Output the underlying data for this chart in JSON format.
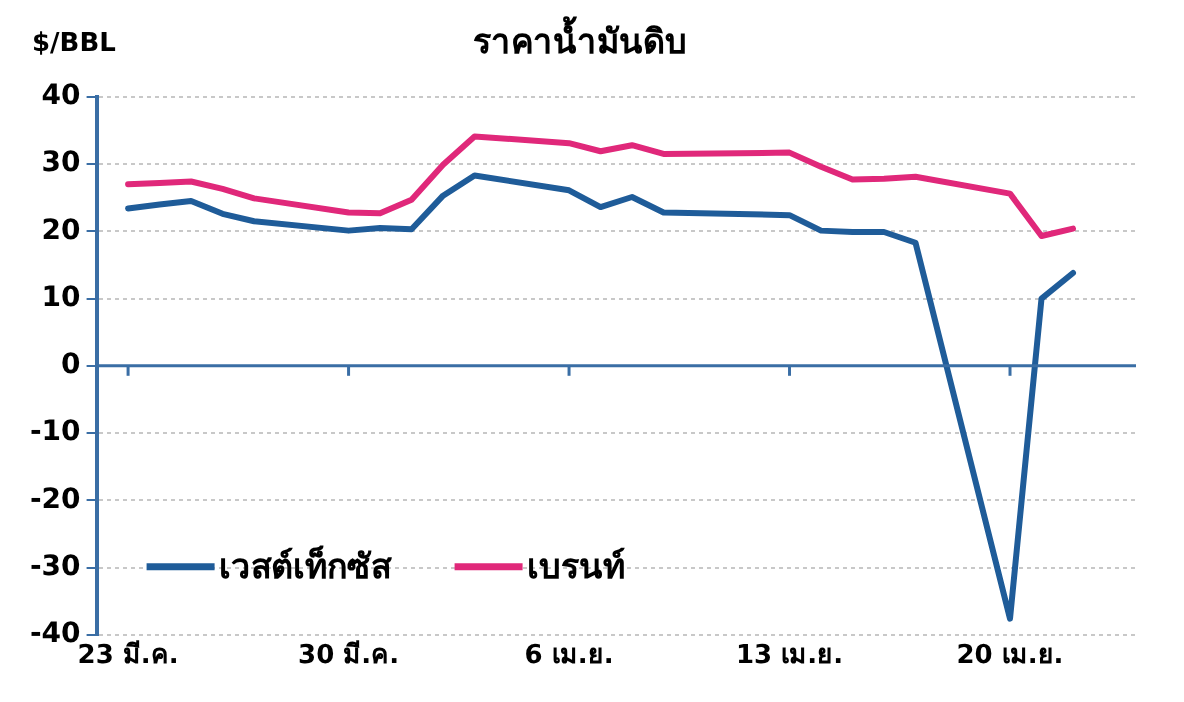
{
  "chart_data": {
    "type": "line",
    "title": "ราคาน้ำมันดิบ",
    "ylabel": "$/BBL",
    "x": [
      "--03-23",
      "--03-24",
      "--03-25",
      "--03-26",
      "--03-27",
      "--03-30",
      "--03-31",
      "--04-01",
      "--04-02",
      "--04-03",
      "--04-06",
      "--04-07",
      "--04-08",
      "--04-09",
      "--04-13",
      "--04-14",
      "--04-15",
      "--04-16",
      "--04-17",
      "--04-20",
      "--04-21",
      "--04-22"
    ],
    "series": [
      {
        "name": "เวสต์เท็กซัส",
        "color": "#1f5c99",
        "values": [
          23.4,
          24.0,
          24.5,
          22.6,
          21.5,
          20.1,
          20.5,
          20.3,
          25.3,
          28.3,
          26.1,
          23.6,
          25.1,
          22.8,
          22.4,
          20.1,
          19.9,
          19.9,
          18.3,
          -37.6,
          10.0,
          13.8
        ]
      },
      {
        "name": "เบรนท์",
        "color": "#e0287a",
        "values": [
          27.0,
          27.2,
          27.4,
          26.3,
          24.9,
          22.8,
          22.7,
          24.7,
          29.9,
          34.1,
          33.1,
          31.9,
          32.8,
          31.5,
          31.7,
          29.6,
          27.7,
          27.8,
          28.1,
          25.6,
          19.3,
          20.4
        ]
      }
    ],
    "xlim": [
      "--03-22",
      "--04-24"
    ],
    "xticks": [
      {
        "value": "--03-23",
        "label": "23 มี.ค."
      },
      {
        "value": "--03-30",
        "label": "30 มี.ค."
      },
      {
        "value": "--04-06",
        "label": "6 เม.ย."
      },
      {
        "value": "--04-13",
        "label": "13 เม.ย."
      },
      {
        "value": "--04-20",
        "label": "20 เม.ย."
      }
    ],
    "ylim": [
      -40,
      40
    ],
    "yticks": [
      -40,
      -30,
      -20,
      -10,
      0,
      10,
      20,
      30,
      40
    ],
    "ref_lines": [
      {
        "axis": "y",
        "value": 0,
        "color": "#3a6ea5",
        "line_style": "solid"
      }
    ],
    "grid": "y",
    "legend": "bottom left",
    "marker": "none",
    "line_style": "solid"
  }
}
